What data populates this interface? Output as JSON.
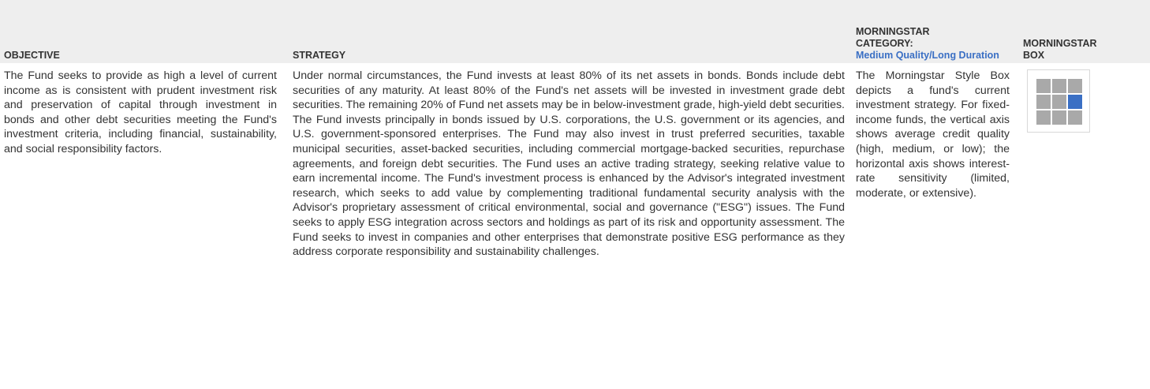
{
  "header": {
    "objective": "OBJECTIVE",
    "strategy": "STRATEGY",
    "category_label": "MORNINGSTAR CATEGORY:",
    "category_value": "Medium Quality/Long Duration",
    "box": "MORNINGSTAR BOX"
  },
  "objective": "The Fund seeks to provide as high a level of current income as is consistent with prudent investment risk and preservation of capital through investment in bonds and other debt securities meeting the Fund's investment criteria, including financial, sustainability, and social responsibility factors.",
  "strategy": "Under normal circumstances, the Fund invests at least 80% of its net assets in bonds. Bonds include debt securities of any maturity. At least 80% of the Fund's net assets will be invested in investment grade debt securities. The remaining 20% of Fund net assets may be in below-investment grade, high-yield debt securities. The Fund invests principally in bonds issued by U.S. corporations, the U.S. government or its agencies, and U.S. government-sponsored enterprises. The Fund may also invest in trust preferred securities, taxable municipal securities, asset-backed securities, including commercial mortgage-backed securities, repurchase agreements, and foreign debt securities. The Fund uses an active trading strategy, seeking relative value to earn incremental income. The Fund's investment process is enhanced by the Advisor's integrated investment research, which seeks to add value by complementing traditional fundamental security analysis with the Advisor's proprietary assessment of critical environmental, social and governance (\"ESG\") issues. The Fund seeks to apply ESG integration across sectors and holdings as part of its risk and opportunity assessment. The Fund seeks to invest in companies and other enterprises that demonstrate positive ESG performance as they address corporate responsibility and sustainability challenges.",
  "category_description": "The Morningstar Style Box depicts a fund's current investment strategy. For fixed-income funds, the vertical axis shows average credit quality (high, medium, or low); the horizontal axis shows interest-rate sensitivity (limited, moderate, or extensive)."
}
